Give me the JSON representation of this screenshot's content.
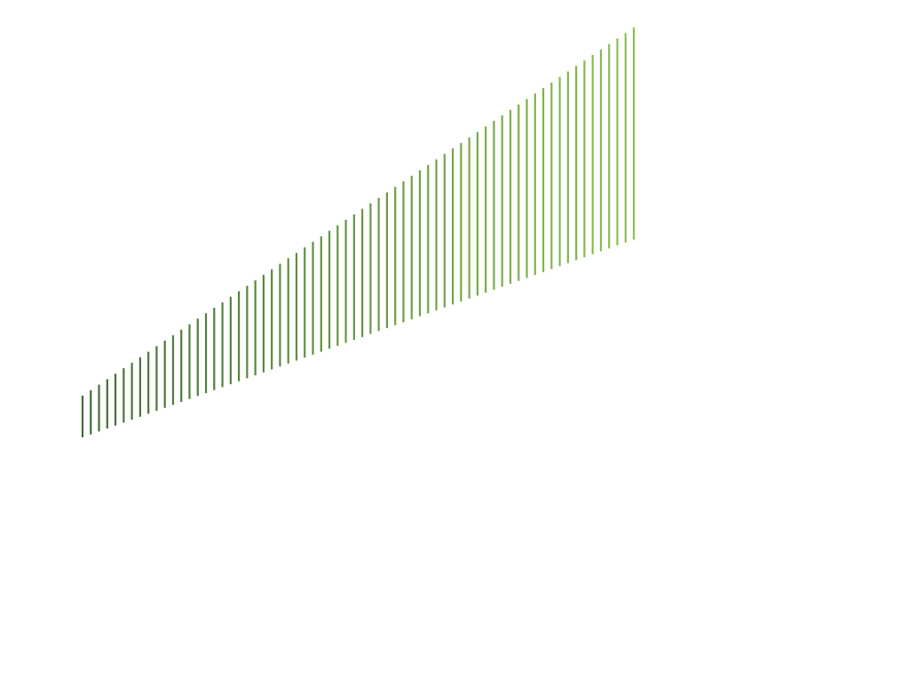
{
  "stripes": {
    "count": 68,
    "color_start": "#3f6e35",
    "color_end": "#8cc152"
  }
}
